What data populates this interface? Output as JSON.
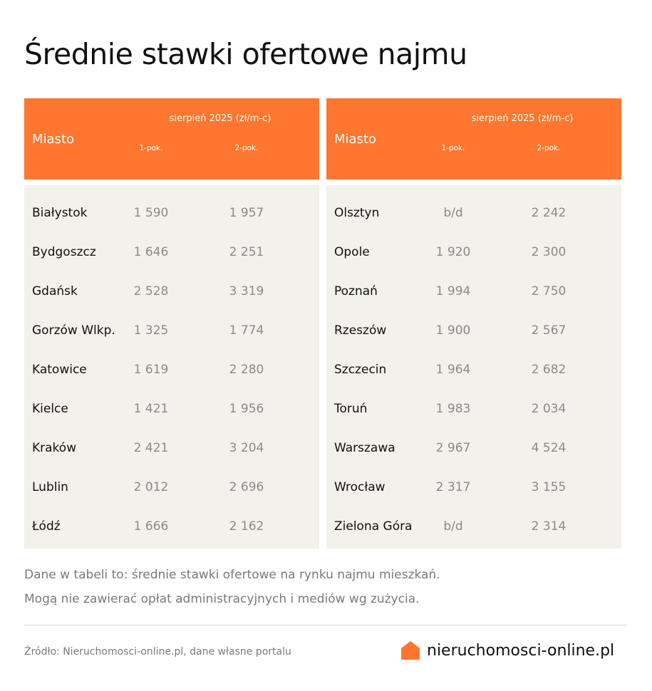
{
  "title": "Średnie stawki ofertowe najmu",
  "header": {
    "city": "Miasto",
    "period": "sierpień 2025 (zł/m-c)",
    "col1": "1-pok.",
    "col2": "2-pok."
  },
  "left_rows": [
    {
      "city": "Białystok",
      "r1": "1 590",
      "r2": "1 957"
    },
    {
      "city": "Bydgoszcz",
      "r1": "1 646",
      "r2": "2 251"
    },
    {
      "city": "Gdańsk",
      "r1": "2 528",
      "r2": "3 319"
    },
    {
      "city": "Gorzów Wlkp.",
      "r1": "1 325",
      "r2": "1 774"
    },
    {
      "city": "Katowice",
      "r1": "1 619",
      "r2": "2 280"
    },
    {
      "city": "Kielce",
      "r1": "1 421",
      "r2": "1 956"
    },
    {
      "city": "Kraków",
      "r1": "2 421",
      "r2": "3 204"
    },
    {
      "city": "Lublin",
      "r1": "2 012",
      "r2": "2 696"
    },
    {
      "city": "Łódź",
      "r1": "1 666",
      "r2": "2 162"
    }
  ],
  "right_rows": [
    {
      "city": "Olsztyn",
      "r1": "b/d",
      "r2": "2 242"
    },
    {
      "city": "Opole",
      "r1": "1 920",
      "r2": "2 300"
    },
    {
      "city": "Poznań",
      "r1": "1 994",
      "r2": "2 750"
    },
    {
      "city": "Rzeszów",
      "r1": "1 900",
      "r2": "2 567"
    },
    {
      "city": "Szczecin",
      "r1": "1 964",
      "r2": "2 682"
    },
    {
      "city": "Toruń",
      "r1": "1 983",
      "r2": "2 034"
    },
    {
      "city": "Warszawa",
      "r1": "2 967",
      "r2": "4 524"
    },
    {
      "city": "Wrocław",
      "r1": "2 317",
      "r2": "3 155"
    },
    {
      "city": "Zielona Góra",
      "r1": "b/d",
      "r2": "2 314"
    }
  ],
  "notes": [
    "Dane w tabeli to: średnie stawki ofertowe na rynku najmu mieszkań.",
    "Mogą nie zawierać opłat administracyjnych i mediów wg zużycia."
  ],
  "source": "Źródło: Nieruchomosci-online.pl, dane własne portalu",
  "logo": {
    "text": "nieruchomosci-online.pl",
    "icon": "house-icon"
  },
  "colors": {
    "accent": "#fe762f",
    "panel_bg": "#f2f1ec"
  }
}
